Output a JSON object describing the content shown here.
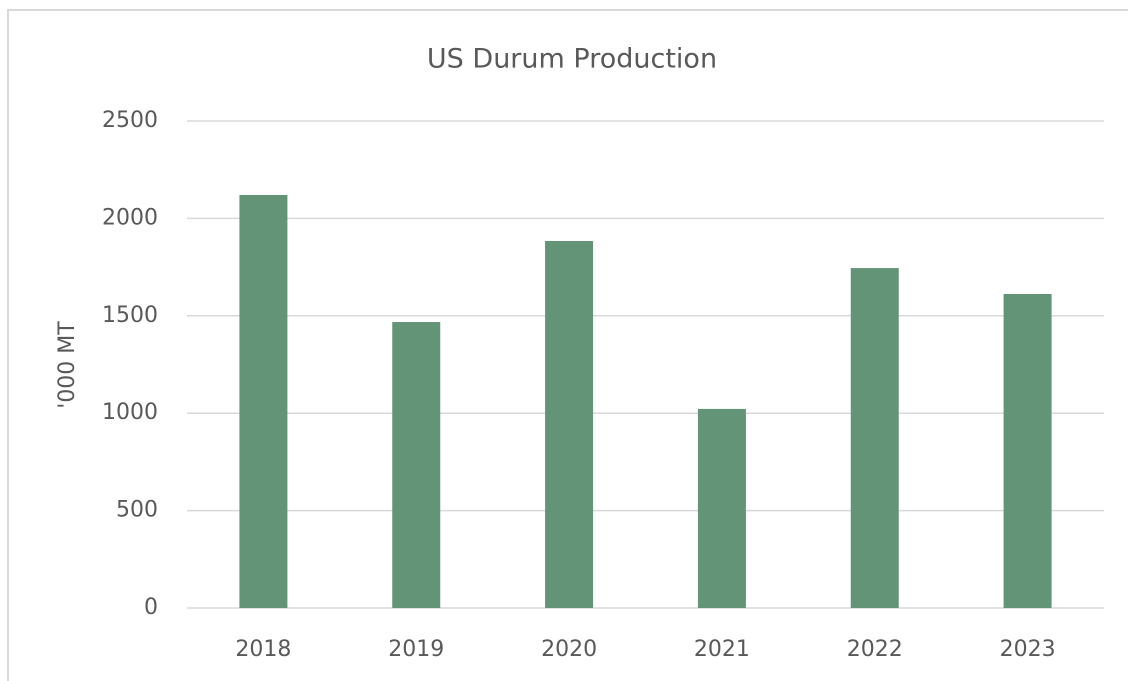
{
  "chart_data": {
    "type": "bar",
    "title": "US Durum Production",
    "y_label": "'000 MT",
    "categories": [
      "2018",
      "2019",
      "2020",
      "2021",
      "2022",
      "2023"
    ],
    "values": [
      2120,
      1468,
      1884,
      1022,
      1745,
      1612
    ],
    "color": "#639477",
    "ylim": [
      0,
      2500
    ],
    "yticks": [
      0,
      500,
      1000,
      1500,
      2000,
      2500
    ],
    "grid": true
  }
}
